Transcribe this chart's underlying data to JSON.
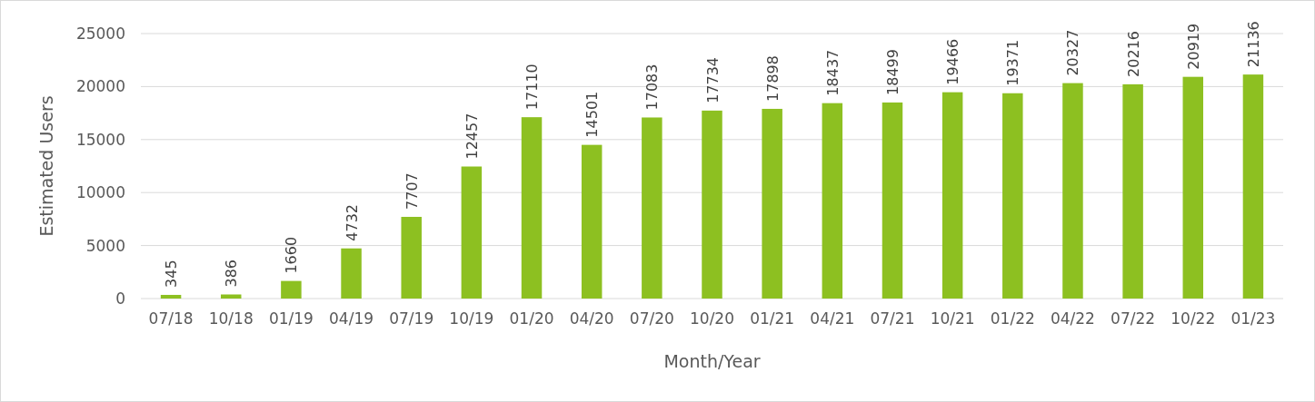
{
  "chart_data": {
    "type": "bar",
    "xlabel": "Month/Year",
    "ylabel": "Estimated Users",
    "categories": [
      "07/18",
      "10/18",
      "01/19",
      "04/19",
      "07/19",
      "10/19",
      "01/20",
      "04/20",
      "07/20",
      "10/20",
      "01/21",
      "04/21",
      "07/21",
      "10/21",
      "01/22",
      "04/22",
      "07/22",
      "10/22",
      "01/23"
    ],
    "values": [
      345,
      386,
      1660,
      4732,
      7707,
      12457,
      17110,
      14501,
      17083,
      17734,
      17898,
      18437,
      18499,
      19466,
      19371,
      20327,
      20216,
      20919,
      21136
    ],
    "color": "#8dc021",
    "ylim": [
      0,
      25000
    ],
    "yticks": [
      0,
      5000,
      10000,
      15000,
      20000,
      25000
    ],
    "grid": "y",
    "data_labels": true
  }
}
